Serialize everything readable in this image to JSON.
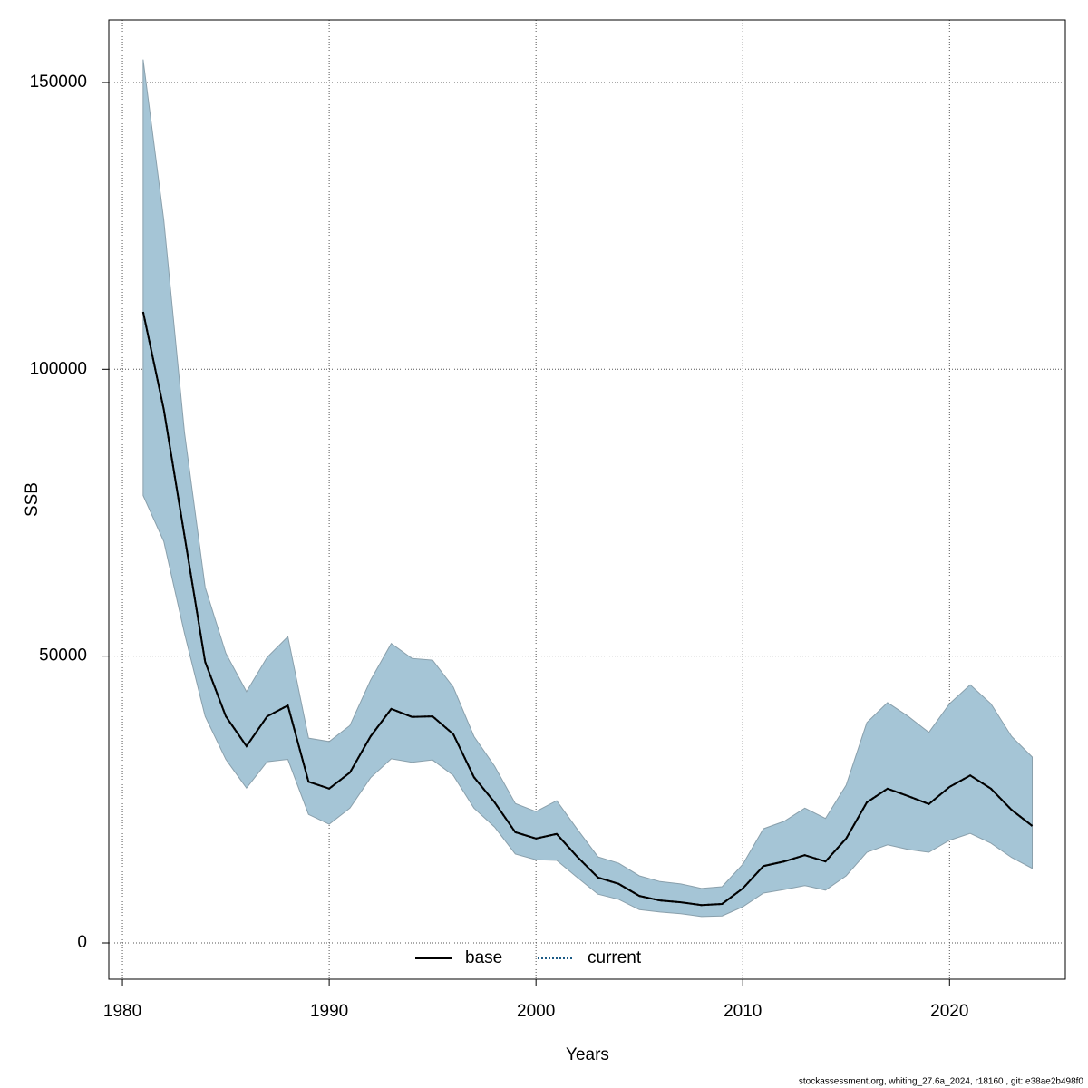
{
  "chart_data": {
    "type": "line",
    "x_label": "Years",
    "y_label": "SSB",
    "x": [
      1981,
      1982,
      1983,
      1984,
      1985,
      1986,
      1987,
      1988,
      1989,
      1990,
      1991,
      1992,
      1993,
      1994,
      1995,
      1996,
      1997,
      1998,
      1999,
      2000,
      2001,
      2002,
      2003,
      2004,
      2005,
      2006,
      2007,
      2008,
      2009,
      2010,
      2011,
      2012,
      2013,
      2014,
      2015,
      2016,
      2017,
      2018,
      2019,
      2020,
      2021,
      2022,
      2023,
      2024
    ],
    "series": [
      {
        "name": "base",
        "color": "#000000",
        "dash": "solid",
        "values": [
          110000,
          93000,
          71000,
          49000,
          39500,
          34300,
          39500,
          41400,
          28100,
          26900,
          29700,
          36000,
          40800,
          39400,
          39500,
          36400,
          28900,
          24500,
          19300,
          18200,
          19000,
          15000,
          11400,
          10300,
          8200,
          7400,
          7100,
          6600,
          6800,
          9500,
          13400,
          14200,
          15300,
          14200,
          18200,
          24500,
          26900,
          25600,
          24200,
          27200,
          29200,
          26900,
          23200,
          20400
        ]
      },
      {
        "name": "current",
        "color": "#1b5a85",
        "dash": "dotted",
        "values": [
          110000,
          93000,
          71000,
          49000,
          39500,
          34300,
          39500,
          41400,
          28100,
          26900,
          29700,
          36000,
          40800,
          39400,
          39500,
          36400,
          28900,
          24500,
          19300,
          18200,
          19000,
          15000,
          11400,
          10300,
          8200,
          7400,
          7100,
          6600,
          6800,
          9500,
          13400,
          14200,
          15300,
          14200,
          18200,
          24500,
          26900,
          25600,
          24200,
          27200,
          29200,
          26900,
          23200,
          20400
        ]
      }
    ],
    "band": {
      "color": "#a5c5d6",
      "upper": [
        154000,
        126000,
        89000,
        62000,
        50500,
        43800,
        49800,
        53400,
        35700,
        35100,
        37900,
        45800,
        52200,
        49600,
        49300,
        44600,
        36000,
        30800,
        24300,
        22900,
        24800,
        19800,
        15000,
        13900,
        11700,
        10700,
        10300,
        9500,
        9800,
        13700,
        19900,
        21200,
        23500,
        21700,
        27500,
        38400,
        41900,
        39500,
        36700,
        41700,
        45000,
        41700,
        36000,
        32400
      ],
      "lower": [
        78000,
        70000,
        54000,
        39500,
        32000,
        27000,
        31600,
        32000,
        22400,
        20700,
        23500,
        28800,
        32100,
        31500,
        31900,
        29200,
        23500,
        20200,
        15500,
        14500,
        14400,
        11400,
        8500,
        7600,
        5800,
        5400,
        5100,
        4600,
        4700,
        6300,
        8700,
        9300,
        10000,
        9200,
        11700,
        15800,
        17100,
        16300,
        15800,
        17900,
        19100,
        17400,
        14900,
        13000
      ]
    },
    "xlim": [
      1979.34,
      2025.6
    ],
    "ylim": [
      -6322,
      160900
    ],
    "xticks": [
      1980,
      1990,
      2000,
      2010,
      2020
    ],
    "yticks": [
      0,
      50000,
      100000,
      150000
    ],
    "grid": true,
    "legend": "bottom",
    "footer": "stockassessment.org, whiting_27.6a_2024, r18160 , git: e38ae2b498f0"
  }
}
